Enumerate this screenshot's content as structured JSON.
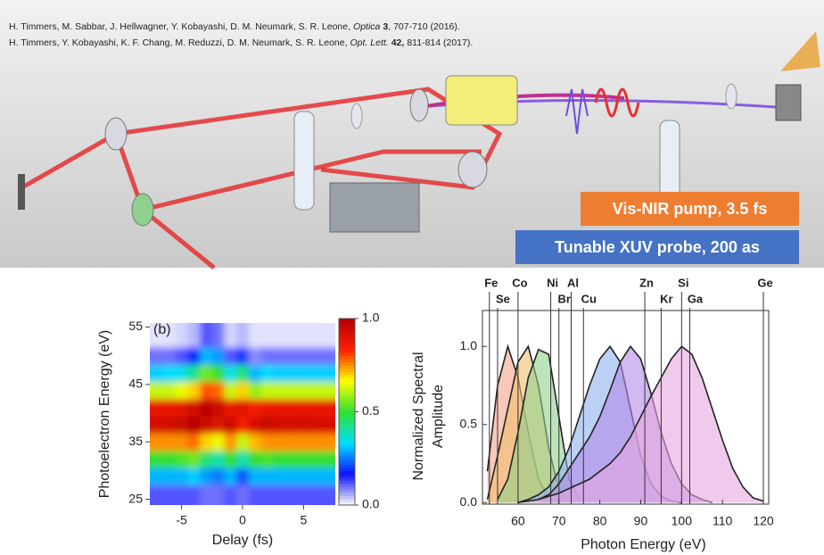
{
  "references": [
    {
      "authors": "H. Timmers, M. Sabbar, J. Hellwagner, Y. Kobayashi, D. M. Neumark, S. R. Leone,",
      "journal": "Optica",
      "volume": "3",
      "rest": ", 707-710 (2016)."
    },
    {
      "authors": "H. Timmers, Y. Kobayashi, K. F. Chang, M. Reduzzi, D. M. Neumark, S. R. Leone,",
      "journal": "Opt. Lett.",
      "volume": "42,",
      "rest": "811-814 (2017)."
    }
  ],
  "labels": [
    {
      "text": "Vis-NIR pump, 3.5 fs",
      "color": "#ed7d31"
    },
    {
      "text": "Tunable XUV probe, 200 as",
      "color": "#4472c4"
    }
  ],
  "chart_data": [
    {
      "type": "heatmap",
      "panel_label": "(b)",
      "xlabel": "Delay (fs)",
      "ylabel": "Photoelectron Energy (eV)",
      "x": [
        -7,
        -6,
        -5,
        -4,
        -3,
        -2,
        -1,
        0,
        1,
        2,
        3,
        4,
        5,
        6,
        7
      ],
      "y": [
        26,
        29,
        32,
        35,
        38,
        41,
        44,
        47,
        50,
        53
      ],
      "z": [
        [
          0.12,
          0.12,
          0.12,
          0.12,
          0.1,
          0.1,
          0.12,
          0.1,
          0.12,
          0.12,
          0.12,
          0.12,
          0.12,
          0.12,
          0.12
        ],
        [
          0.3,
          0.3,
          0.3,
          0.32,
          0.28,
          0.25,
          0.3,
          0.22,
          0.3,
          0.3,
          0.3,
          0.3,
          0.3,
          0.3,
          0.3
        ],
        [
          0.5,
          0.5,
          0.52,
          0.55,
          0.45,
          0.4,
          0.5,
          0.4,
          0.5,
          0.52,
          0.5,
          0.5,
          0.5,
          0.5,
          0.5
        ],
        [
          0.75,
          0.75,
          0.75,
          0.78,
          0.7,
          0.65,
          0.75,
          0.62,
          0.72,
          0.75,
          0.75,
          0.75,
          0.75,
          0.75,
          0.75
        ],
        [
          0.92,
          0.93,
          0.95,
          0.98,
          0.95,
          0.9,
          0.95,
          0.85,
          0.92,
          0.95,
          0.93,
          0.92,
          0.93,
          0.92,
          0.92
        ],
        [
          0.88,
          0.88,
          0.9,
          0.92,
          0.97,
          0.95,
          0.88,
          0.9,
          0.85,
          0.88,
          0.88,
          0.88,
          0.88,
          0.88,
          0.88
        ],
        [
          0.62,
          0.62,
          0.65,
          0.7,
          0.8,
          0.78,
          0.62,
          0.7,
          0.58,
          0.62,
          0.62,
          0.62,
          0.62,
          0.62,
          0.62
        ],
        [
          0.32,
          0.33,
          0.35,
          0.42,
          0.55,
          0.5,
          0.35,
          0.45,
          0.3,
          0.33,
          0.32,
          0.32,
          0.32,
          0.32,
          0.32
        ],
        [
          0.1,
          0.1,
          0.12,
          0.18,
          0.3,
          0.28,
          0.12,
          0.2,
          0.08,
          0.1,
          0.1,
          0.1,
          0.1,
          0.1,
          0.1
        ],
        [
          0.02,
          0.02,
          0.03,
          0.05,
          0.12,
          0.1,
          0.03,
          0.05,
          0.02,
          0.02,
          0.02,
          0.02,
          0.02,
          0.02,
          0.02
        ]
      ],
      "xlim": [
        -7.6,
        7.6
      ],
      "ylim": [
        24,
        55.7
      ],
      "xticks": [
        -5,
        0,
        5
      ],
      "yticks": [
        25,
        35,
        45,
        55
      ],
      "clim": [
        0,
        1
      ],
      "cticks": [
        {
          "value": 0,
          "label": "0.0"
        },
        0.5,
        {
          "value": 1,
          "label": "1.0"
        }
      ],
      "colorscale": [
        "#ffffff",
        "#1010ff",
        "#00e0ff",
        "#30e030",
        "#ffff00",
        "#ff2000",
        "#b00000"
      ]
    },
    {
      "type": "area",
      "xlabel": "Photon Energy (eV)",
      "ylabel": [
        "Normalized Spectral",
        "Amplitude"
      ],
      "x": [
        52.5,
        55,
        57.5,
        60,
        62.5,
        65,
        67.5,
        70,
        72.5,
        75,
        77.5,
        80,
        82.5,
        85,
        87.5,
        90,
        92.5,
        95,
        97.5,
        100,
        102.5,
        105,
        107.5,
        110,
        112.5,
        115,
        117.5,
        120
      ],
      "series": [
        {
          "color": "#f4a38a",
          "values": [
            0.2,
            0.75,
            1.0,
            0.8,
            0.45,
            0.15,
            0.03,
            0.0,
            null,
            null,
            null,
            null,
            null,
            null,
            null,
            null,
            null,
            null,
            null,
            null,
            null,
            null,
            null,
            null,
            null,
            null,
            null,
            null
          ]
        },
        {
          "color": "#f2bf70",
          "values": [
            0.02,
            0.3,
            0.6,
            0.9,
            1.0,
            0.75,
            0.35,
            0.08,
            0.01,
            null,
            null,
            null,
            null,
            null,
            null,
            null,
            null,
            null,
            null,
            null,
            null,
            null,
            null,
            null,
            null,
            null,
            null,
            null
          ]
        },
        {
          "color": "#8fd18a",
          "values": [
            null,
            0.02,
            0.15,
            0.45,
            0.8,
            0.98,
            0.95,
            0.55,
            0.15,
            0.02,
            null,
            null,
            null,
            null,
            null,
            null,
            null,
            null,
            null,
            null,
            null,
            null,
            null,
            null,
            null,
            null,
            null,
            null
          ]
        },
        {
          "color": "#8fb0ef",
          "values": [
            null,
            null,
            null,
            0.0,
            0.02,
            0.05,
            0.1,
            0.2,
            0.35,
            0.55,
            0.75,
            0.92,
            1.0,
            0.9,
            0.6,
            0.3,
            0.12,
            0.04,
            0.01,
            0.0,
            null,
            null,
            null,
            null,
            null,
            null,
            null,
            null
          ]
        },
        {
          "color": "#b48ae8",
          "values": [
            null,
            null,
            null,
            null,
            null,
            0.02,
            0.05,
            0.12,
            0.22,
            0.32,
            0.42,
            0.55,
            0.72,
            0.9,
            1.0,
            0.92,
            0.7,
            0.45,
            0.25,
            0.12,
            0.05,
            0.02,
            0.0,
            null,
            null,
            null,
            null,
            null
          ]
        },
        {
          "color": "#e6a6e0",
          "values": [
            null,
            null,
            null,
            0.0,
            0.01,
            0.02,
            0.04,
            0.06,
            0.09,
            0.12,
            0.15,
            0.2,
            0.25,
            0.32,
            0.42,
            0.55,
            0.68,
            0.8,
            0.92,
            1.0,
            0.95,
            0.8,
            0.6,
            0.4,
            0.22,
            0.1,
            0.03,
            0.01
          ]
        }
      ],
      "edges": [
        {
          "name": "Fe",
          "x": 53
        },
        {
          "name": "Se",
          "x": 55
        },
        {
          "name": "Co",
          "x": 60
        },
        {
          "name": "Ni",
          "x": 68
        },
        {
          "name": "Br",
          "x": 70
        },
        {
          "name": "Al",
          "x": 73
        },
        {
          "name": "Cu",
          "x": 76
        },
        {
          "name": "Zn",
          "x": 91
        },
        {
          "name": "Kr",
          "x": 95
        },
        {
          "name": "Si",
          "x": 100
        },
        {
          "name": "Ga",
          "x": 102
        },
        {
          "name": "Ge",
          "x": 120
        }
      ],
      "xlim": [
        51.3,
        121.3
      ],
      "ylim": [
        -0.01,
        1.23
      ],
      "xticks": [
        60,
        70,
        80,
        90,
        100,
        110,
        120
      ],
      "yticks": [
        {
          "value": 0,
          "label": "0.0"
        },
        0.5,
        {
          "value": 1,
          "label": "1.0"
        }
      ]
    }
  ]
}
